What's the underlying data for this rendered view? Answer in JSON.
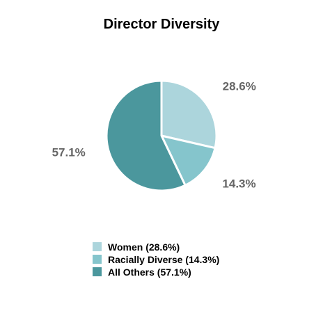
{
  "chart_data": {
    "type": "pie",
    "title": "Director Diversity",
    "slices": [
      {
        "label": "Women (28.6%)",
        "value": 28.6,
        "data_label": "28.6%",
        "color": "#acd5dc"
      },
      {
        "label": "Racially Diverse (14.3%)",
        "value": 14.3,
        "data_label": "14.3%",
        "color": "#85c5cc"
      },
      {
        "label": "All Others (57.1%)",
        "value": 57.1,
        "data_label": "57.1%",
        "color": "#4b979d"
      }
    ],
    "start_angle_deg": 0,
    "direction": "clockwise",
    "legend_position": "bottom"
  }
}
